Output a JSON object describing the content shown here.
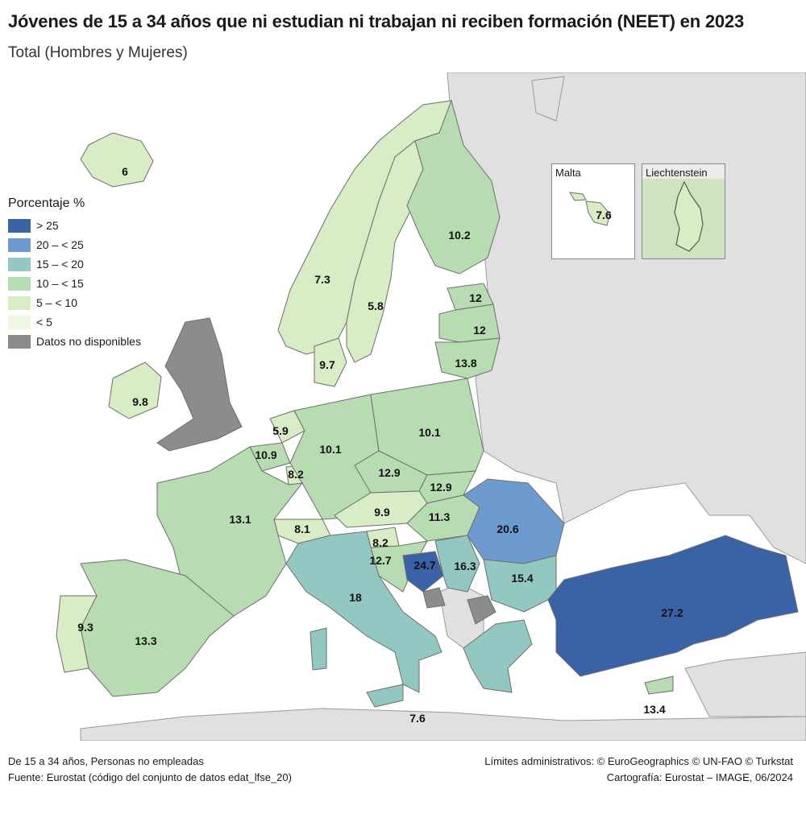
{
  "header": {
    "title": "Jóvenes de 15 a 34 años que ni estudian ni trabajan ni reciben formación (NEET) en 2023",
    "subtitle": "Total (Hombres y Mujeres)"
  },
  "legend": {
    "title": "Porcentaje %",
    "items": [
      {
        "label": "> 25",
        "color": "#3a62a7"
      },
      {
        "label": "20 – < 25",
        "color": "#6d9bd0"
      },
      {
        "label": "15 – < 20",
        "color": "#93c8c2"
      },
      {
        "label": "10 – < 15",
        "color": "#b8dcb2"
      },
      {
        "label": "5 – < 10",
        "color": "#d8ecc6"
      },
      {
        "label": "< 5",
        "color": "#eef6e6"
      },
      {
        "label": "Datos no disponibles",
        "color": "#8c8c8c"
      }
    ]
  },
  "colors": {
    "sea": "#ffffff",
    "non_eu_land": "#e0e0e0",
    "border": "#6e6e6e"
  },
  "insets": {
    "malta": {
      "title": "Malta",
      "value": "7.6"
    },
    "liechtenstein": {
      "title": "Liechtenstein"
    }
  },
  "regions": [
    {
      "id": "iceland",
      "value": "6"
    },
    {
      "id": "norway",
      "value": "7.3"
    },
    {
      "id": "sweden",
      "value": "5.8"
    },
    {
      "id": "finland",
      "value": "10.2"
    },
    {
      "id": "estonia",
      "value": "12"
    },
    {
      "id": "latvia",
      "value": "12"
    },
    {
      "id": "lithuania",
      "value": "13.8"
    },
    {
      "id": "denmark",
      "value": "9.7"
    },
    {
      "id": "ireland",
      "value": "9.8"
    },
    {
      "id": "netherlands",
      "value": "5.9"
    },
    {
      "id": "belgium",
      "value": "10.9"
    },
    {
      "id": "luxembourg",
      "value": "8.2"
    },
    {
      "id": "germany",
      "value": "10.1"
    },
    {
      "id": "poland",
      "value": "10.1"
    },
    {
      "id": "czechia",
      "value": "12.9"
    },
    {
      "id": "slovakia",
      "value": "12.9"
    },
    {
      "id": "austria",
      "value": "9.9"
    },
    {
      "id": "hungary",
      "value": "11.3"
    },
    {
      "id": "switzerland",
      "value": "8.1"
    },
    {
      "id": "slovenia",
      "value": "8.2"
    },
    {
      "id": "croatia",
      "value": "12.7"
    },
    {
      "id": "bosnia",
      "value": "24.7"
    },
    {
      "id": "serbia",
      "value": "16.3"
    },
    {
      "id": "romania",
      "value": "20.6"
    },
    {
      "id": "bulgaria",
      "value": "15.4"
    },
    {
      "id": "france",
      "value": "13.1"
    },
    {
      "id": "italy",
      "value": "18"
    },
    {
      "id": "spain",
      "value": "13.3"
    },
    {
      "id": "portugal",
      "value": "9.3"
    },
    {
      "id": "turkey",
      "value": "27.2"
    },
    {
      "id": "cyprus",
      "value": "13.4"
    },
    {
      "id": "malta-main",
      "value": "7.6"
    }
  ],
  "footer": {
    "left_line1": "De 15 a 34 años, Personas no empleadas",
    "left_line2": "Fuente: Eurostat (código del conjunto de datos edat_lfse_20)",
    "right_line1": "Límites administrativos: © EuroGeographics © UN-FAO © Turkstat",
    "right_line2": "Cartografía: Eurostat – IMAGE, 06/2024"
  }
}
